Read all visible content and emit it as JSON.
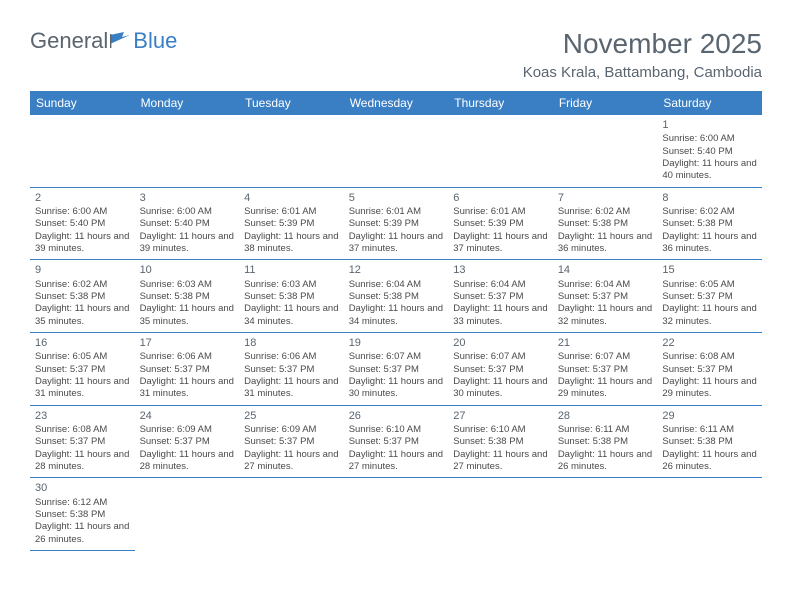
{
  "logo": {
    "part1": "General",
    "part2": "Blue"
  },
  "title": "November 2025",
  "location": "Koas Krala, Battambang, Cambodia",
  "day_headers": [
    "Sunday",
    "Monday",
    "Tuesday",
    "Wednesday",
    "Thursday",
    "Friday",
    "Saturday"
  ],
  "colors": {
    "header_bg": "#3a7fc4",
    "header_fg": "#ffffff",
    "rule": "#3a7fc4",
    "text": "#4a4a4a",
    "title_text": "#5a6570"
  },
  "weeks": [
    [
      null,
      null,
      null,
      null,
      null,
      null,
      {
        "n": "1",
        "lines": [
          "Sunrise: 6:00 AM",
          "Sunset: 5:40 PM",
          "Daylight: 11 hours and 40 minutes."
        ]
      }
    ],
    [
      {
        "n": "2",
        "lines": [
          "Sunrise: 6:00 AM",
          "Sunset: 5:40 PM",
          "Daylight: 11 hours and 39 minutes."
        ]
      },
      {
        "n": "3",
        "lines": [
          "Sunrise: 6:00 AM",
          "Sunset: 5:40 PM",
          "Daylight: 11 hours and 39 minutes."
        ]
      },
      {
        "n": "4",
        "lines": [
          "Sunrise: 6:01 AM",
          "Sunset: 5:39 PM",
          "Daylight: 11 hours and 38 minutes."
        ]
      },
      {
        "n": "5",
        "lines": [
          "Sunrise: 6:01 AM",
          "Sunset: 5:39 PM",
          "Daylight: 11 hours and 37 minutes."
        ]
      },
      {
        "n": "6",
        "lines": [
          "Sunrise: 6:01 AM",
          "Sunset: 5:39 PM",
          "Daylight: 11 hours and 37 minutes."
        ]
      },
      {
        "n": "7",
        "lines": [
          "Sunrise: 6:02 AM",
          "Sunset: 5:38 PM",
          "Daylight: 11 hours and 36 minutes."
        ]
      },
      {
        "n": "8",
        "lines": [
          "Sunrise: 6:02 AM",
          "Sunset: 5:38 PM",
          "Daylight: 11 hours and 36 minutes."
        ]
      }
    ],
    [
      {
        "n": "9",
        "lines": [
          "Sunrise: 6:02 AM",
          "Sunset: 5:38 PM",
          "Daylight: 11 hours and 35 minutes."
        ]
      },
      {
        "n": "10",
        "lines": [
          "Sunrise: 6:03 AM",
          "Sunset: 5:38 PM",
          "Daylight: 11 hours and 35 minutes."
        ]
      },
      {
        "n": "11",
        "lines": [
          "Sunrise: 6:03 AM",
          "Sunset: 5:38 PM",
          "Daylight: 11 hours and 34 minutes."
        ]
      },
      {
        "n": "12",
        "lines": [
          "Sunrise: 6:04 AM",
          "Sunset: 5:38 PM",
          "Daylight: 11 hours and 34 minutes."
        ]
      },
      {
        "n": "13",
        "lines": [
          "Sunrise: 6:04 AM",
          "Sunset: 5:37 PM",
          "Daylight: 11 hours and 33 minutes."
        ]
      },
      {
        "n": "14",
        "lines": [
          "Sunrise: 6:04 AM",
          "Sunset: 5:37 PM",
          "Daylight: 11 hours and 32 minutes."
        ]
      },
      {
        "n": "15",
        "lines": [
          "Sunrise: 6:05 AM",
          "Sunset: 5:37 PM",
          "Daylight: 11 hours and 32 minutes."
        ]
      }
    ],
    [
      {
        "n": "16",
        "lines": [
          "Sunrise: 6:05 AM",
          "Sunset: 5:37 PM",
          "Daylight: 11 hours and 31 minutes."
        ]
      },
      {
        "n": "17",
        "lines": [
          "Sunrise: 6:06 AM",
          "Sunset: 5:37 PM",
          "Daylight: 11 hours and 31 minutes."
        ]
      },
      {
        "n": "18",
        "lines": [
          "Sunrise: 6:06 AM",
          "Sunset: 5:37 PM",
          "Daylight: 11 hours and 31 minutes."
        ]
      },
      {
        "n": "19",
        "lines": [
          "Sunrise: 6:07 AM",
          "Sunset: 5:37 PM",
          "Daylight: 11 hours and 30 minutes."
        ]
      },
      {
        "n": "20",
        "lines": [
          "Sunrise: 6:07 AM",
          "Sunset: 5:37 PM",
          "Daylight: 11 hours and 30 minutes."
        ]
      },
      {
        "n": "21",
        "lines": [
          "Sunrise: 6:07 AM",
          "Sunset: 5:37 PM",
          "Daylight: 11 hours and 29 minutes."
        ]
      },
      {
        "n": "22",
        "lines": [
          "Sunrise: 6:08 AM",
          "Sunset: 5:37 PM",
          "Daylight: 11 hours and 29 minutes."
        ]
      }
    ],
    [
      {
        "n": "23",
        "lines": [
          "Sunrise: 6:08 AM",
          "Sunset: 5:37 PM",
          "Daylight: 11 hours and 28 minutes."
        ]
      },
      {
        "n": "24",
        "lines": [
          "Sunrise: 6:09 AM",
          "Sunset: 5:37 PM",
          "Daylight: 11 hours and 28 minutes."
        ]
      },
      {
        "n": "25",
        "lines": [
          "Sunrise: 6:09 AM",
          "Sunset: 5:37 PM",
          "Daylight: 11 hours and 27 minutes."
        ]
      },
      {
        "n": "26",
        "lines": [
          "Sunrise: 6:10 AM",
          "Sunset: 5:37 PM",
          "Daylight: 11 hours and 27 minutes."
        ]
      },
      {
        "n": "27",
        "lines": [
          "Sunrise: 6:10 AM",
          "Sunset: 5:38 PM",
          "Daylight: 11 hours and 27 minutes."
        ]
      },
      {
        "n": "28",
        "lines": [
          "Sunrise: 6:11 AM",
          "Sunset: 5:38 PM",
          "Daylight: 11 hours and 26 minutes."
        ]
      },
      {
        "n": "29",
        "lines": [
          "Sunrise: 6:11 AM",
          "Sunset: 5:38 PM",
          "Daylight: 11 hours and 26 minutes."
        ]
      }
    ],
    [
      {
        "n": "30",
        "lines": [
          "Sunrise: 6:12 AM",
          "Sunset: 5:38 PM",
          "Daylight: 11 hours and 26 minutes."
        ]
      },
      null,
      null,
      null,
      null,
      null,
      null
    ]
  ]
}
